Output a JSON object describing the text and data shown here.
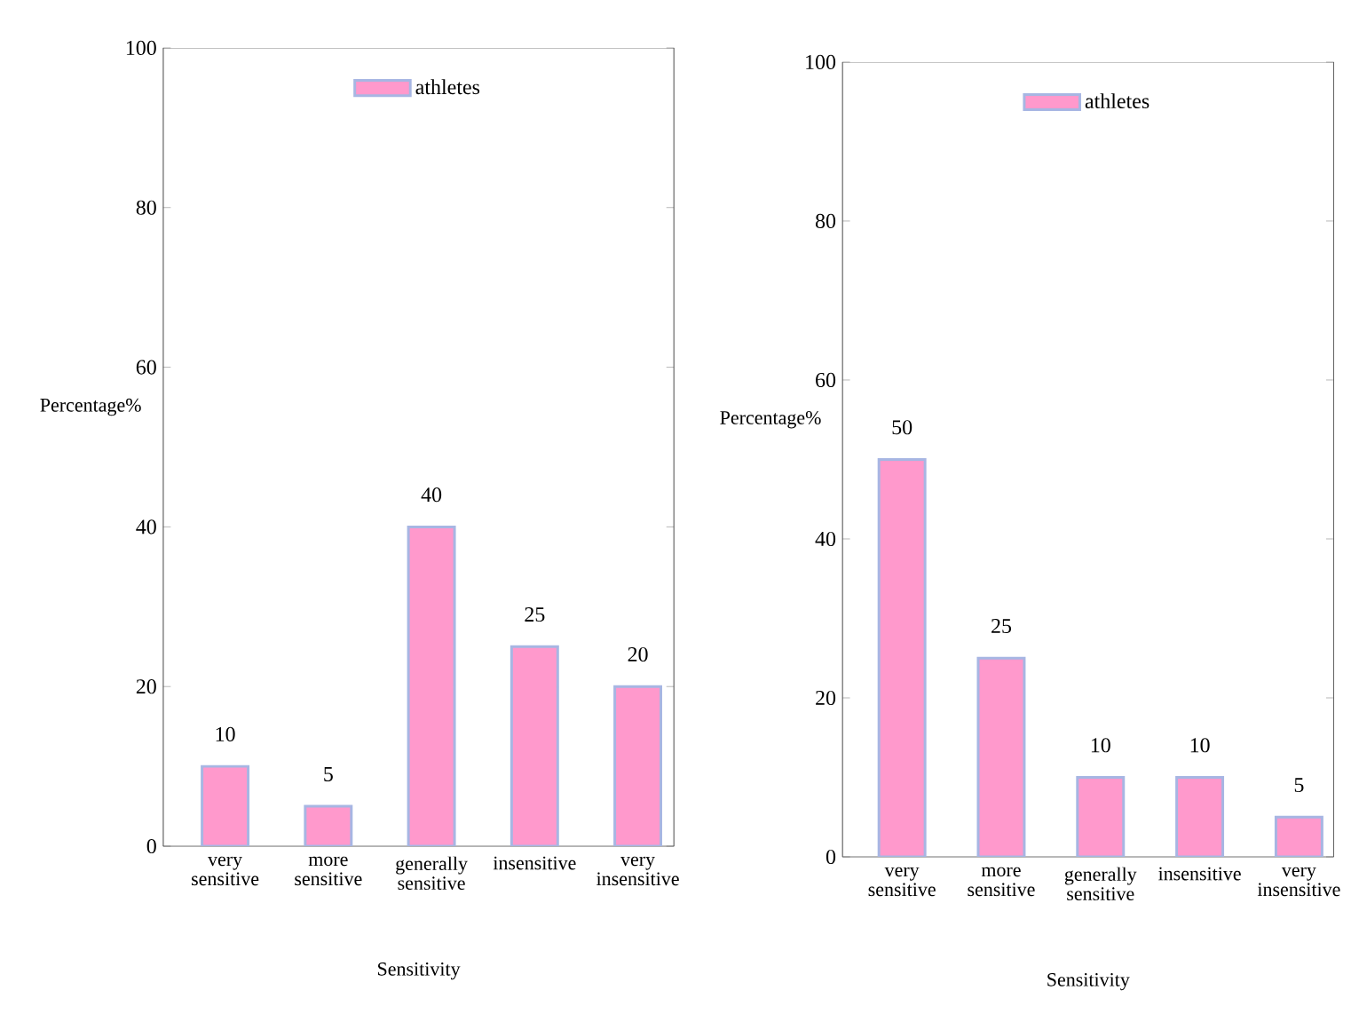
{
  "chart_data": [
    {
      "type": "bar",
      "xlabel": "Sensitivity",
      "ylabel": "Percentage%",
      "categories": [
        "very sensitive",
        "more sensitive",
        "generally sensitive",
        "insensitive",
        "very insensitive"
      ],
      "series": [
        {
          "name": "athletes",
          "color": "#ff99cc",
          "values": [
            10,
            5,
            40,
            25,
            20
          ]
        }
      ],
      "ylim": [
        0,
        100
      ],
      "yticks": [
        0,
        20,
        40,
        60,
        80,
        100
      ],
      "data_labels": true,
      "legend": "top",
      "grid": false
    },
    {
      "type": "bar",
      "xlabel": "Sensitivity",
      "ylabel": "Percentage%",
      "categories": [
        "very sensitive",
        "more sensitive",
        "generally sensitive",
        "insensitive",
        "very insensitive"
      ],
      "series": [
        {
          "name": "athletes",
          "color": "#ff99cc",
          "values": [
            50,
            25,
            10,
            10,
            5
          ]
        }
      ],
      "ylim": [
        0,
        100
      ],
      "yticks": [
        0,
        20,
        40,
        60,
        80,
        100
      ],
      "data_labels": true,
      "legend": "top",
      "grid": false
    }
  ]
}
